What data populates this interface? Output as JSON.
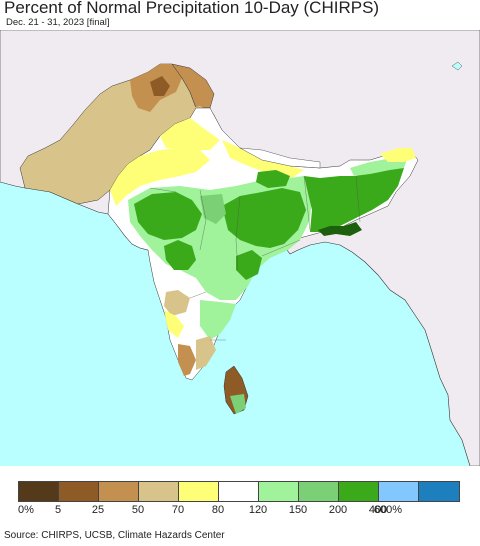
{
  "header": {
    "title": "Percent of Normal Precipitation 10-Day (CHIRPS)",
    "subtitle": "Dec. 21 - 31, 2023 [final]"
  },
  "map": {
    "ocean_color": "#b9ffff",
    "land_nodata_color": "#efebf1",
    "border_color": "#333333"
  },
  "legend": {
    "colors": [
      "#54391a",
      "#8e5a26",
      "#c4904f",
      "#d8c48a",
      "#ffff77",
      "#ffffff",
      "#a0f29b",
      "#7bcf75",
      "#3aaa1a",
      "#82c8ff",
      "#1e7fbf"
    ],
    "labels": [
      "0%",
      "5",
      "25",
      "50",
      "70",
      "80",
      "120",
      "150",
      "200",
      "400",
      "600%"
    ]
  },
  "footer": {
    "source": "Source: CHIRPS, UCSB, Climate Hazards Center"
  }
}
